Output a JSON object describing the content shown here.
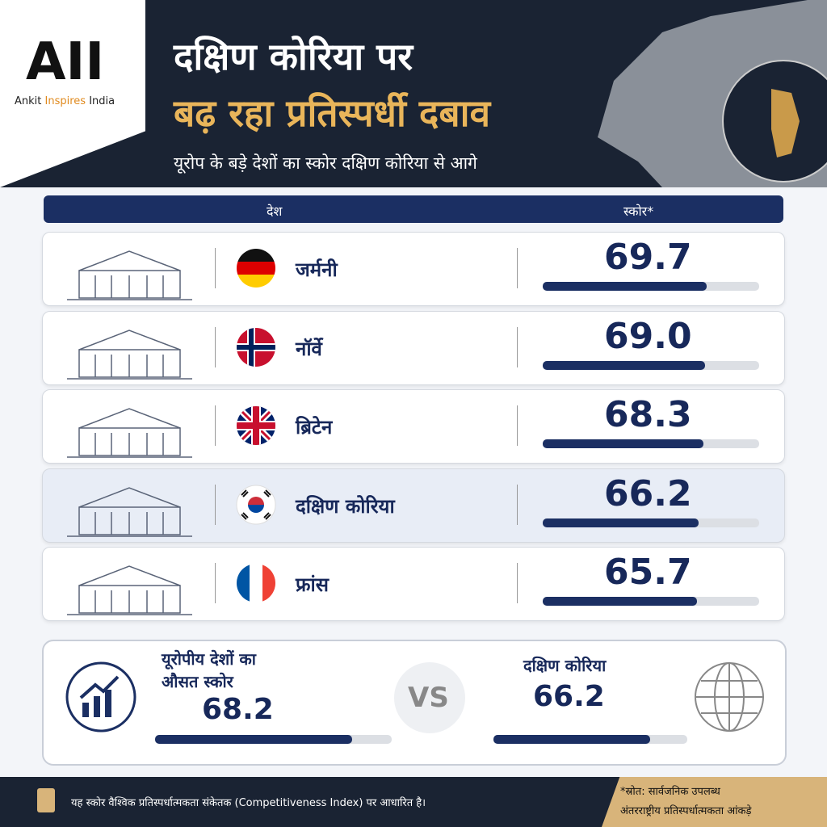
{
  "header": {
    "logo_mark": "AII",
    "logo_caption_1": "Ankit ",
    "logo_caption_2": "Inspires",
    "logo_caption_3": " India",
    "title_line_1": "दक्षिण कोरिया पर",
    "title_line_2": "बढ़ रहा प्रतिस्पर्धी दबाव",
    "subtitle": "यूरोप के बड़े देशों का स्कोर दक्षिण कोरिया से आगे"
  },
  "table": {
    "columns": [
      "देश",
      "स्कोर*"
    ],
    "xlim": [
      0,
      92
    ],
    "rows": [
      {
        "country": "जर्मनी",
        "score": 69.7,
        "score_label": "69.7"
      },
      {
        "country": "नॉर्वे",
        "score": 69,
        "score_label": "69.0"
      },
      {
        "country": "ब्रिटेन",
        "score": 68.3,
        "score_label": "68.3"
      },
      {
        "country": "दक्षिण कोरिया",
        "score": 66.2,
        "score_label": "66.2"
      },
      {
        "country": "फ्रांस",
        "score": 65.7,
        "score_label": "65.7"
      }
    ]
  },
  "comparison": {
    "xlim": [
      0,
      82
    ],
    "europe_label_1": "यूरोपीय देशों का",
    "europe_label_2": "औसत स्कोर",
    "europe_score": 68.2,
    "europe_score_label": "68.2",
    "vs": "VS",
    "korea_label": "दक्षिण कोरिया",
    "korea_score": 66.2,
    "korea_score_label": "66.2"
  },
  "footer": {
    "note": "यह स्कोर वैश्विक प्रतिस्पर्धात्मकता संकेतक (Competitiveness Index) पर आधारित है।",
    "source_1": "*स्रोत: सार्वजनिक उपलब्ध",
    "source_2": "अंतरराष्ट्रीय प्रतिस्पर्धात्मकता आंकड़े"
  }
}
